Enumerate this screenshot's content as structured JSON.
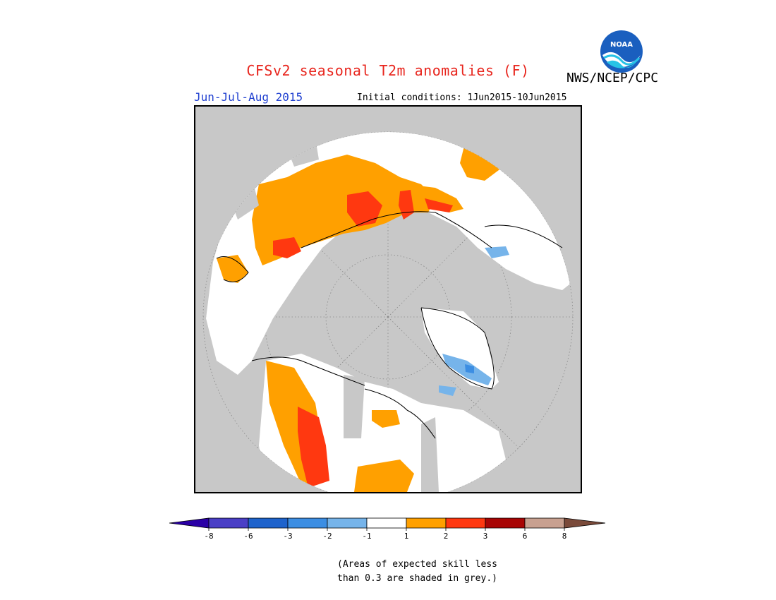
{
  "header": {
    "title": "CFSv2 seasonal T2m anomalies (F)",
    "season": "Jun-Jul-Aug 2015",
    "initial_conditions": "Initial conditions: 1Jun2015-10Jun2015",
    "agency": "NWS/NCEP/CPC",
    "logo_text": "NOAA"
  },
  "legend": {
    "ticks": [
      "-8",
      "-6",
      "-3",
      "-2",
      "-1",
      "1",
      "2",
      "3",
      "6",
      "8"
    ],
    "colors": [
      "#2a00a6",
      "#4a3fc6",
      "#1e63cc",
      "#3c8ee3",
      "#76b4ea",
      "#ffffff",
      "#ffa000",
      "#ff3810",
      "#a80505",
      "#c8a090",
      "#7a4a3a"
    ],
    "note_line1": "(Areas of expected skill less",
    "note_line2": "than 0.3 are shaded in grey.)"
  },
  "map": {
    "projection": "north-polar-stereographic",
    "land_color": "#ffffff",
    "ocean_color": "#c8c8c8",
    "skill_mask_color": "#c8c8c8"
  }
}
